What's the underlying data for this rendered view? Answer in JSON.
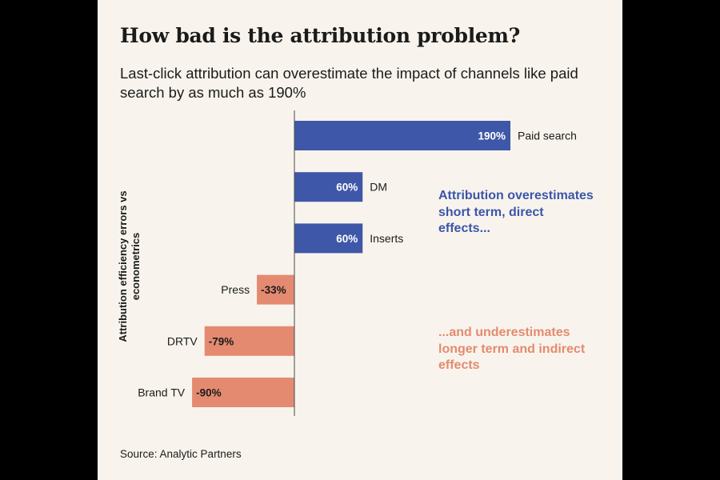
{
  "title": "How bad is the attribution problem?",
  "subtitle": "Last-click attribution can overestimate the impact of channels like paid search by as much as 190%",
  "y_axis_label": [
    "Attribution efficiency errors vs",
    "econometrics"
  ],
  "annotations": {
    "overestimates": "Attribution overestimates short term, direct effects...",
    "underestimates": "...and underestimates longer term and indirect effects"
  },
  "source": "Source: Analytic Partners",
  "colors": {
    "positive": "#3f57a8",
    "negative": "#e48a70",
    "positive_text": "#ffffff",
    "negative_text": "#1b1b1b",
    "positive_annotation": "#3b55aa",
    "negative_annotation": "#e48a70",
    "panel": "#f8f4ed",
    "axis": "#4a4a4a"
  },
  "chart_data": {
    "type": "bar",
    "orientation": "horizontal",
    "categories": [
      "Paid search",
      "DM",
      "Inserts",
      "Press",
      "DRTV",
      "Brand TV"
    ],
    "values": [
      190,
      60,
      60,
      -33,
      -79,
      -90
    ],
    "data_labels": [
      "190%",
      "60%",
      "60%",
      "-33%",
      "-79%",
      "-90%"
    ],
    "unit": "%",
    "xlim": [
      -90,
      190
    ],
    "ylabel": "Attribution efficiency errors vs econometrics",
    "grid": false
  }
}
